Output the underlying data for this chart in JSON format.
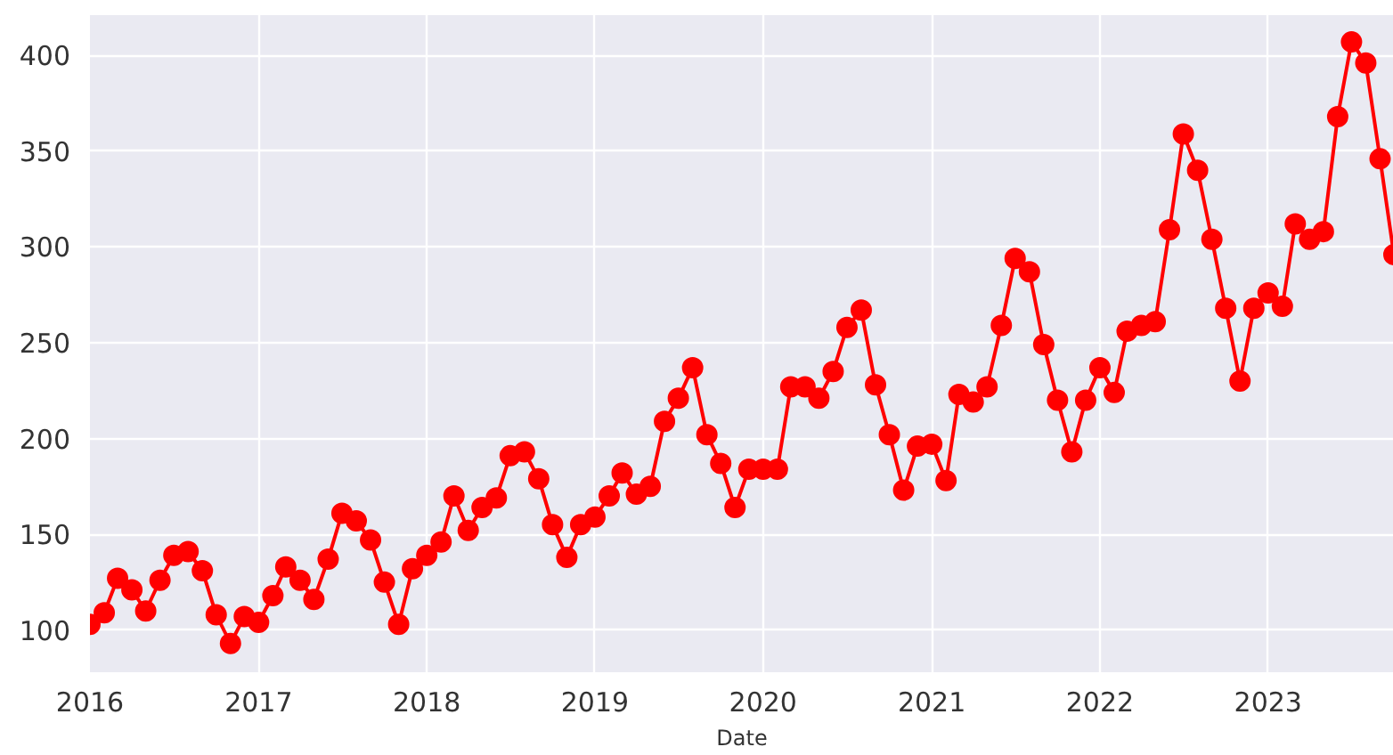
{
  "chart_data": {
    "type": "line",
    "xlabel": "Date",
    "x": [
      "2016-01",
      "2016-02",
      "2016-03",
      "2016-04",
      "2016-05",
      "2016-06",
      "2016-07",
      "2016-08",
      "2016-09",
      "2016-10",
      "2016-11",
      "2016-12",
      "2017-01",
      "2017-02",
      "2017-03",
      "2017-04",
      "2017-05",
      "2017-06",
      "2017-07",
      "2017-08",
      "2017-09",
      "2017-10",
      "2017-11",
      "2017-12",
      "2018-01",
      "2018-02",
      "2018-03",
      "2018-04",
      "2018-05",
      "2018-06",
      "2018-07",
      "2018-08",
      "2018-09",
      "2018-10",
      "2018-11",
      "2018-12",
      "2019-01",
      "2019-02",
      "2019-03",
      "2019-04",
      "2019-05",
      "2019-06",
      "2019-07",
      "2019-08",
      "2019-09",
      "2019-10",
      "2019-11",
      "2019-12",
      "2020-01",
      "2020-02",
      "2020-03",
      "2020-04",
      "2020-05",
      "2020-06",
      "2020-07",
      "2020-08",
      "2020-09",
      "2020-10",
      "2020-11",
      "2020-12",
      "2021-01",
      "2021-02",
      "2021-03",
      "2021-04",
      "2021-05",
      "2021-06",
      "2021-07",
      "2021-08",
      "2021-09",
      "2021-10",
      "2021-11",
      "2021-12",
      "2022-01",
      "2022-02",
      "2022-03",
      "2022-04",
      "2022-05",
      "2022-06",
      "2022-07",
      "2022-08",
      "2022-09",
      "2022-10",
      "2022-11",
      "2022-12",
      "2023-01",
      "2023-02",
      "2023-03",
      "2023-04",
      "2023-05",
      "2023-06",
      "2023-07",
      "2023-08",
      "2023-09",
      "2023-10"
    ],
    "series": [
      {
        "color": "#ff0000",
        "values": [
          103,
          109,
          127,
          121,
          110,
          126,
          139,
          141,
          131,
          108,
          93,
          107,
          104,
          118,
          133,
          126,
          116,
          137,
          161,
          157,
          147,
          125,
          103,
          132,
          139,
          146,
          170,
          152,
          164,
          169,
          191,
          193,
          179,
          155,
          138,
          155,
          159,
          170,
          182,
          171,
          175,
          209,
          221,
          237,
          202,
          187,
          164,
          184,
          184,
          184,
          227,
          227,
          221,
          235,
          258,
          267,
          228,
          202,
          173,
          196,
          197,
          178,
          223,
          219,
          227,
          259,
          294,
          287,
          249,
          220,
          193,
          220,
          237,
          224,
          256,
          259,
          261,
          309,
          359,
          340,
          304,
          268,
          230,
          268,
          276,
          269,
          312,
          304,
          308,
          368,
          407,
          396,
          346,
          296
        ]
      }
    ],
    "xlim": [
      "2016-01",
      "2023-10"
    ],
    "xticks": [
      "2016",
      "2017",
      "2018",
      "2019",
      "2020",
      "2021",
      "2022",
      "2023"
    ],
    "ylim": [
      78,
      421
    ],
    "yticks": [
      100,
      150,
      200,
      250,
      300,
      350,
      400
    ],
    "grid": true,
    "marker": "circle",
    "line_style": "solid"
  }
}
